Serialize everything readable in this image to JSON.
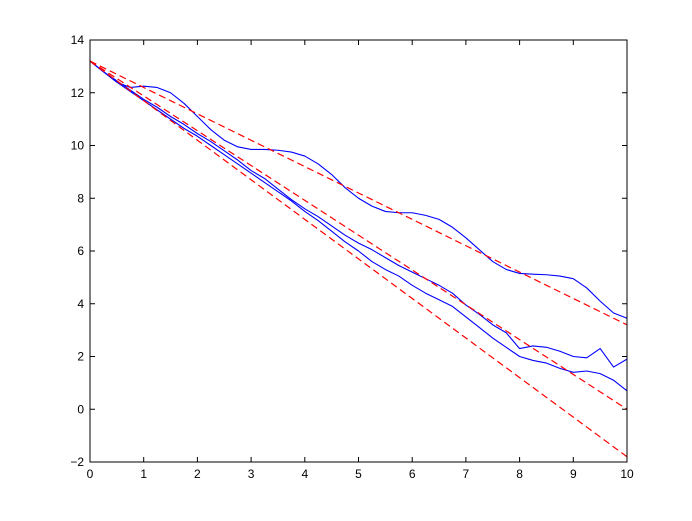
{
  "chart_data": {
    "type": "line",
    "title": "",
    "xlabel": "",
    "ylabel": "",
    "xlim": [
      0,
      10
    ],
    "ylim": [
      -2,
      14
    ],
    "x_ticks": [
      0,
      1,
      2,
      3,
      4,
      5,
      6,
      7,
      8,
      9,
      10
    ],
    "y_ticks": [
      -2,
      0,
      2,
      4,
      6,
      8,
      10,
      12,
      14
    ],
    "grid": false,
    "legend": "none",
    "series": [
      {
        "style": "solid",
        "color": "#0000ff",
        "x": [
          0,
          0.25,
          0.5,
          0.75,
          1,
          1.25,
          1.5,
          1.75,
          2,
          2.25,
          2.5,
          2.75,
          3,
          3.25,
          3.5,
          3.75,
          4,
          4.25,
          4.5,
          4.75,
          5,
          5.25,
          5.5,
          5.75,
          6,
          6.25,
          6.5,
          6.75,
          7,
          7.25,
          7.5,
          7.75,
          8,
          8.25,
          8.5,
          8.75,
          9,
          9.25,
          9.5,
          9.75,
          10
        ],
        "y": [
          13.2,
          12.8,
          12.4,
          12.2,
          12.25,
          12.2,
          12.0,
          11.6,
          11.1,
          10.6,
          10.2,
          9.95,
          9.85,
          9.85,
          9.82,
          9.75,
          9.6,
          9.3,
          8.9,
          8.4,
          8.0,
          7.7,
          7.5,
          7.45,
          7.45,
          7.35,
          7.2,
          6.9,
          6.5,
          6.05,
          5.6,
          5.3,
          5.15,
          5.12,
          5.1,
          5.05,
          4.95,
          4.6,
          4.1,
          3.65,
          3.45
        ]
      },
      {
        "style": "solid",
        "color": "#0000ff",
        "x": [
          0,
          0.25,
          0.5,
          0.75,
          1,
          1.25,
          1.5,
          1.75,
          2,
          2.25,
          2.5,
          2.75,
          3,
          3.25,
          3.5,
          3.75,
          4,
          4.25,
          4.5,
          4.75,
          5,
          5.25,
          5.5,
          5.75,
          6,
          6.25,
          6.5,
          6.75,
          7,
          7.25,
          7.5,
          7.75,
          8,
          8.25,
          8.5,
          8.75,
          9,
          9.25,
          9.5,
          9.75,
          10
        ],
        "y": [
          13.2,
          12.8,
          12.45,
          12.1,
          11.75,
          11.45,
          11.1,
          10.8,
          10.45,
          10.15,
          9.8,
          9.45,
          9.05,
          8.75,
          8.35,
          7.95,
          7.6,
          7.3,
          6.95,
          6.6,
          6.3,
          6.05,
          5.75,
          5.45,
          5.2,
          4.95,
          4.7,
          4.4,
          3.95,
          3.6,
          3.2,
          2.9,
          2.3,
          2.4,
          2.35,
          2.2,
          2.0,
          1.95,
          2.3,
          1.6,
          1.9
        ]
      },
      {
        "style": "solid",
        "color": "#0000ff",
        "x": [
          0,
          0.25,
          0.5,
          0.75,
          1,
          1.25,
          1.5,
          1.75,
          2,
          2.25,
          2.5,
          2.75,
          3,
          3.25,
          3.5,
          3.75,
          4,
          4.25,
          4.5,
          4.75,
          5,
          5.25,
          5.5,
          5.75,
          6,
          6.25,
          6.5,
          6.75,
          7,
          7.25,
          7.5,
          7.75,
          8,
          8.25,
          8.5,
          8.75,
          9,
          9.25,
          9.5,
          9.75,
          10
        ],
        "y": [
          13.2,
          12.8,
          12.4,
          12.05,
          11.7,
          11.35,
          11.0,
          10.65,
          10.35,
          10.0,
          9.65,
          9.3,
          8.95,
          8.6,
          8.25,
          7.9,
          7.5,
          7.15,
          6.75,
          6.35,
          6.0,
          5.6,
          5.3,
          5.05,
          4.7,
          4.4,
          4.15,
          3.9,
          3.5,
          3.1,
          2.7,
          2.35,
          2.0,
          1.85,
          1.75,
          1.55,
          1.4,
          1.45,
          1.35,
          1.1,
          0.7
        ]
      },
      {
        "style": "dashed",
        "color": "#ff0000",
        "x": [
          0,
          0.25,
          0.5,
          0.75,
          1,
          1.25,
          1.5,
          1.75,
          2,
          2.25,
          2.5,
          2.75,
          3,
          3.25,
          3.5,
          3.75,
          4,
          4.25,
          4.5,
          4.75,
          5,
          5.25,
          5.5,
          5.75,
          6,
          6.25,
          6.5,
          6.75,
          7,
          7.25,
          7.5,
          7.75,
          8,
          8.25,
          8.5,
          8.75,
          9,
          9.25,
          9.5,
          9.75,
          10
        ],
        "y": [
          13.2,
          12.95,
          12.7,
          12.45,
          12.2,
          11.95,
          11.7,
          11.45,
          11.2,
          10.95,
          10.7,
          10.45,
          10.2,
          9.95,
          9.7,
          9.45,
          9.2,
          8.95,
          8.7,
          8.45,
          8.2,
          7.95,
          7.7,
          7.45,
          7.2,
          6.95,
          6.7,
          6.45,
          6.2,
          5.95,
          5.7,
          5.45,
          5.2,
          4.95,
          4.7,
          4.45,
          4.2,
          3.95,
          3.7,
          3.45,
          3.2
        ]
      },
      {
        "style": "dashed",
        "color": "#ff0000",
        "x": [
          0,
          0.25,
          0.5,
          0.75,
          1,
          1.25,
          1.5,
          1.75,
          2,
          2.25,
          2.5,
          2.75,
          3,
          3.25,
          3.5,
          3.75,
          4,
          4.25,
          4.5,
          4.75,
          5,
          5.25,
          5.5,
          5.75,
          6,
          6.25,
          6.5,
          6.75,
          7,
          7.25,
          7.5,
          7.75,
          8,
          8.25,
          8.5,
          8.75,
          9,
          9.25,
          9.5,
          9.75,
          10
        ],
        "y": [
          13.2,
          12.87,
          12.54,
          12.21,
          11.88,
          11.55,
          11.22,
          10.89,
          10.56,
          10.23,
          9.9,
          9.57,
          9.24,
          8.91,
          8.58,
          8.25,
          7.92,
          7.59,
          7.26,
          6.93,
          6.6,
          6.27,
          5.94,
          5.61,
          5.28,
          4.95,
          4.62,
          4.29,
          3.96,
          3.63,
          3.3,
          2.97,
          2.64,
          2.31,
          1.98,
          1.65,
          1.32,
          0.99,
          0.66,
          0.33,
          0.0
        ]
      },
      {
        "style": "dashed",
        "color": "#ff0000",
        "x": [
          0,
          0.25,
          0.5,
          0.75,
          1,
          1.25,
          1.5,
          1.75,
          2,
          2.25,
          2.5,
          2.75,
          3,
          3.25,
          3.5,
          3.75,
          4,
          4.25,
          4.5,
          4.75,
          5,
          5.25,
          5.5,
          5.75,
          6,
          6.25,
          6.5,
          6.75,
          7,
          7.25,
          7.5,
          7.75,
          8,
          8.25,
          8.5,
          8.75,
          9,
          9.25,
          9.5,
          9.75,
          10
        ],
        "y": [
          13.2,
          12.825,
          12.45,
          12.075,
          11.7,
          11.325,
          10.95,
          10.575,
          10.2,
          9.825,
          9.45,
          9.075,
          8.7,
          8.325,
          7.95,
          7.575,
          7.2,
          6.825,
          6.45,
          6.075,
          5.7,
          5.325,
          4.95,
          4.575,
          4.2,
          3.825,
          3.45,
          3.075,
          2.7,
          2.325,
          1.95,
          1.575,
          1.2,
          0.825,
          0.45,
          0.075,
          -0.3,
          -0.675,
          -1.05,
          -1.425,
          -1.8
        ]
      }
    ]
  }
}
